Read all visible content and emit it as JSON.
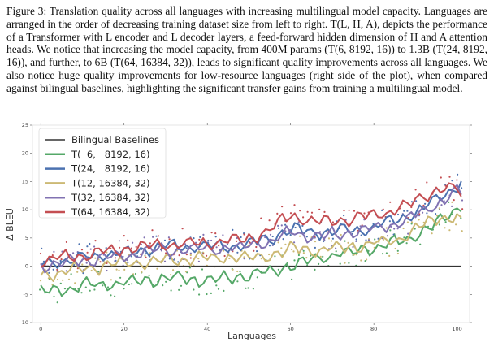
{
  "caption": {
    "text": "Figure 3: Translation quality across all languages with increasing multilingual model capacity. Languages are arranged in the order of decreasing training dataset size from left to right. T(L, H, A), depicts the performance of a Transformer with L encoder and L decoder layers, a feed-forward hidden dimension of H and A attention heads. We notice that increasing the model capacity, from 400M params (T(6, 8192, 16)) to 1.3B (T(24, 8192, 16)), and further, to 6B (T(64, 16384, 32)), leads to significant quality improvements across all languages. We also notice huge quality improvements for low-resource languages (right side of the plot), when compared against bilingual baselines, highlighting the significant transfer gains from training a multilingual model."
  },
  "chart_data": {
    "type": "line",
    "xlabel": "Languages",
    "ylabel": "Δ BLEU",
    "xlim": [
      -2,
      103
    ],
    "ylim": [
      -10,
      25
    ],
    "xticks": [
      0,
      20,
      40,
      60,
      80,
      100
    ],
    "yticks": [
      -10,
      -5,
      0,
      5,
      10,
      15,
      20,
      25
    ],
    "grid": false,
    "legend_position": "top-left",
    "x_anchor": [
      0,
      10,
      20,
      30,
      40,
      50,
      55,
      60,
      65,
      70,
      75,
      80,
      85,
      90,
      95,
      100,
      101
    ],
    "series": [
      {
        "name": "Bilingual Baselines",
        "color": "#333333",
        "style": "baseline",
        "values": [
          0,
          0,
          0,
          0,
          0,
          0,
          0,
          0,
          0,
          0,
          0,
          0,
          0,
          0,
          0,
          0,
          0
        ]
      },
      {
        "name": "T(  6,   8192, 16)",
        "color": "#55a868",
        "values": [
          -4.5,
          -3.5,
          -3.0,
          -2.0,
          -2.5,
          -1.5,
          -1.0,
          0.0,
          1.0,
          2.0,
          2.5,
          3.5,
          4.0,
          5.5,
          7.5,
          10.0,
          11.0
        ]
      },
      {
        "name": "T(24,   8192, 16)",
        "color": "#4c72b0",
        "values": [
          0.5,
          1.5,
          2.5,
          3.5,
          3.5,
          4.0,
          5.0,
          6.5,
          6.0,
          6.0,
          6.5,
          7.0,
          8.0,
          9.5,
          11.5,
          14.5,
          15.5
        ]
      },
      {
        "name": "T(12, 16384, 32)",
        "color": "#ccb974",
        "values": [
          -1.5,
          -0.5,
          0.5,
          1.0,
          1.5,
          1.5,
          2.0,
          3.0,
          3.0,
          3.0,
          3.5,
          4.0,
          4.5,
          6.5,
          8.5,
          9.0,
          7.5
        ]
      },
      {
        "name": "T(32, 16384, 32)",
        "color": "#8172b2",
        "values": [
          0.0,
          1.0,
          2.0,
          3.0,
          3.0,
          3.5,
          4.5,
          6.0,
          5.5,
          5.5,
          6.0,
          6.5,
          7.5,
          9.0,
          11.0,
          13.5,
          13.0
        ]
      },
      {
        "name": "T(64, 16384, 32)",
        "color": "#c44e52",
        "values": [
          1.0,
          2.0,
          3.0,
          4.0,
          4.0,
          5.0,
          6.5,
          9.0,
          8.0,
          8.0,
          8.5,
          9.0,
          10.0,
          11.5,
          13.5,
          14.0,
          12.0
        ]
      }
    ]
  }
}
